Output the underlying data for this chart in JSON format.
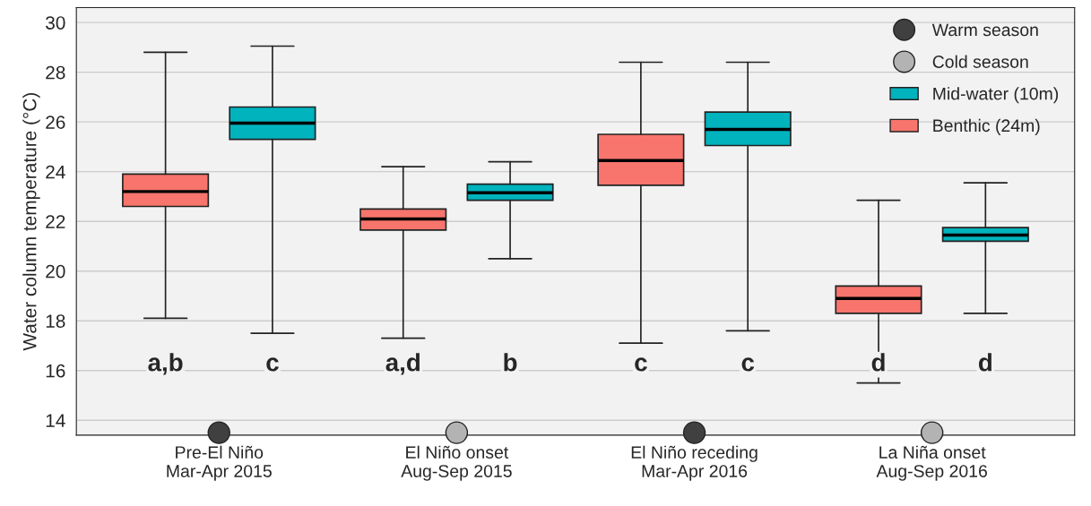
{
  "chart_data": {
    "type": "box",
    "ylabel": "Water column temperature (°C)",
    "categories": [
      "Pre-El Niño\nMar-Apr 2015",
      "El Niño onset\nAug-Sep 2015",
      "El Niño receding\nMar-Apr 2016",
      "La Niña onset\nAug-Sep 2016"
    ],
    "series": [
      {
        "name": "Warm season",
        "type": "scatter",
        "color": "#404040",
        "values": [
          13.5,
          null,
          13.5,
          null
        ]
      },
      {
        "name": "Cold season",
        "type": "scatter",
        "color": "#b3b3b3",
        "values": [
          null,
          13.5,
          null,
          13.5
        ]
      },
      {
        "name": "Mid-water (10m)",
        "color": "#00b3bd",
        "boxes": [
          {
            "low": 17.5,
            "q1": 25.3,
            "median": 25.95,
            "q3": 26.6,
            "high": 29.05
          },
          {
            "low": 20.5,
            "q1": 22.85,
            "median": 23.15,
            "q3": 23.5,
            "high": 24.4
          },
          {
            "low": 17.6,
            "q1": 25.05,
            "median": 25.7,
            "q3": 26.4,
            "high": 28.4
          },
          {
            "low": 18.3,
            "q1": 21.2,
            "median": 21.45,
            "q3": 21.75,
            "high": 23.55
          }
        ]
      },
      {
        "name": "Benthic (24m)",
        "color": "#f7756c",
        "boxes": [
          {
            "low": 18.1,
            "q1": 22.6,
            "median": 23.2,
            "q3": 23.9,
            "high": 28.8
          },
          {
            "low": 17.3,
            "q1": 21.65,
            "median": 22.1,
            "q3": 22.5,
            "high": 24.2
          },
          {
            "low": 17.1,
            "q1": 23.45,
            "median": 24.45,
            "q3": 25.5,
            "high": 28.4
          },
          {
            "low": 15.5,
            "q1": 18.3,
            "median": 18.9,
            "q3": 19.4,
            "high": 22.85
          }
        ]
      }
    ],
    "annotations": [
      "a,b",
      "c",
      "a,d",
      "b",
      "c",
      "c",
      "d",
      "d"
    ],
    "ylim": [
      13.4,
      30.6
    ],
    "yticks": [
      14,
      16,
      18,
      20,
      22,
      24,
      26,
      28,
      30
    ],
    "grid": "y",
    "legend": "top right",
    "marker": "circle"
  }
}
